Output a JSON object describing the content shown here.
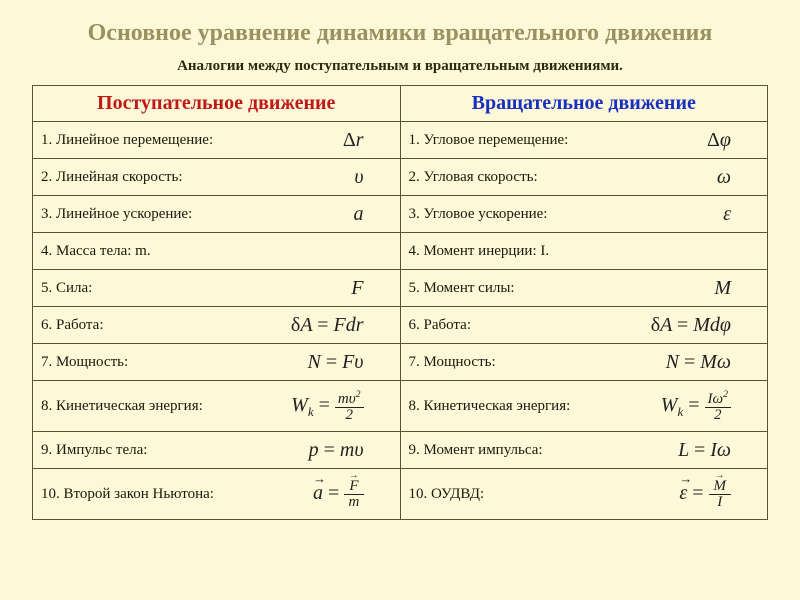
{
  "colors": {
    "background": "#fdf8d8",
    "title": "#9a9060",
    "border": "#5a5230",
    "header_left": "#c01818",
    "header_right": "#1830c0",
    "text": "#1a1a0a"
  },
  "typography": {
    "title_fontsize_pt": 18,
    "header_fontsize_pt": 15,
    "body_fontsize_pt": 11,
    "symbol_fontsize_pt": 15,
    "font_family": "Times New Roman"
  },
  "title": "Основное уравнение динамики вращательного движения",
  "subtitle": "Аналогии между поступательным и вращательным движениями.",
  "headers": {
    "left": "Поступательное движение",
    "right": "Вращательное движение"
  },
  "rows": [
    {
      "left_label": "1. Линейное перемещение:",
      "left_symbol": "Δr",
      "right_label": "1. Угловое перемещение:",
      "right_symbol": "Δφ"
    },
    {
      "left_label": "2. Линейная скорость:",
      "left_symbol": "υ",
      "right_label": "2. Угловая скорость:",
      "right_symbol": "ω"
    },
    {
      "left_label": "3. Линейное ускорение:",
      "left_symbol": "a",
      "right_label": "3. Угловое ускорение:",
      "right_symbol": "ε"
    },
    {
      "left_label": "4. Масса тела: m.",
      "left_symbol": "",
      "right_label": "4. Момент инерции: I.",
      "right_symbol": ""
    },
    {
      "left_label": "5. Сила:",
      "left_symbol": "F",
      "right_label": "5. Момент силы:",
      "right_symbol": "M"
    },
    {
      "left_label": "6. Работа:",
      "left_symbol": "δA = Fdr",
      "right_label": "6. Работа:",
      "right_symbol": "δA = Mdφ"
    },
    {
      "left_label": "7. Мощность:",
      "left_symbol": "N = Fυ",
      "right_label": "7. Мощность:",
      "right_symbol": "N = Mω"
    },
    {
      "left_label": "8. Кинетическая энергия:",
      "left_symbol": "W_k = mυ²/2",
      "right_label": "8. Кинетическая энергия:",
      "right_symbol": "W_k = Iω²/2"
    },
    {
      "left_label": "9. Импульс тела:",
      "left_symbol": "p = mυ",
      "right_label": "9. Момент импульса:",
      "right_symbol": "L = Iω"
    },
    {
      "left_label": "10. Второй закон Ньютона:",
      "left_symbol": "a = F/m",
      "right_label": "10. ОУДВД:",
      "right_symbol": "ε = M/I"
    }
  ]
}
